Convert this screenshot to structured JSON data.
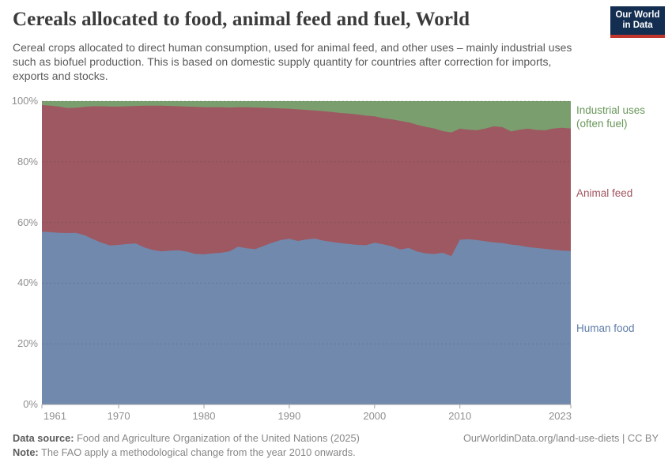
{
  "header": {
    "title": "Cereals allocated to food, animal feed and fuel, World",
    "subtitle": "Cereal crops allocated to direct human consumption, used for animal feed, and other uses – mainly industrial uses such as biofuel production. This is based on domestic supply quantity for countries after correction for imports, exports and stocks.",
    "logo": {
      "line1": "Our World",
      "line2": "in Data",
      "bg_color": "#142e52",
      "accent_color": "#c0362c"
    }
  },
  "chart_data": {
    "type": "area",
    "stacked_percent": true,
    "title": "Cereals allocated to food, animal feed and fuel, World",
    "xlabel": "",
    "ylabel": "",
    "ylim": [
      0,
      100
    ],
    "grid": "dashed-horizontal",
    "legend_position": "right",
    "x": [
      1961,
      1962,
      1963,
      1964,
      1965,
      1966,
      1967,
      1968,
      1969,
      1970,
      1971,
      1972,
      1973,
      1974,
      1975,
      1976,
      1977,
      1978,
      1979,
      1980,
      1981,
      1982,
      1983,
      1984,
      1985,
      1986,
      1987,
      1988,
      1989,
      1990,
      1991,
      1992,
      1993,
      1994,
      1995,
      1996,
      1997,
      1998,
      1999,
      2000,
      2001,
      2002,
      2003,
      2004,
      2005,
      2006,
      2007,
      2008,
      2009,
      2010,
      2011,
      2012,
      2013,
      2014,
      2015,
      2016,
      2017,
      2018,
      2019,
      2020,
      2021,
      2022,
      2023
    ],
    "series": [
      {
        "name": "Human food",
        "color": "#7189ad",
        "label_color": "#5e7ca9",
        "label_lines": [
          "Human food"
        ],
        "values": [
          57.0,
          56.8,
          56.6,
          56.5,
          56.6,
          55.8,
          54.5,
          53.3,
          52.4,
          52.6,
          52.9,
          53.1,
          51.8,
          50.9,
          50.5,
          50.7,
          50.8,
          50.4,
          49.6,
          49.5,
          49.8,
          50.0,
          50.5,
          52.0,
          51.5,
          51.2,
          52.3,
          53.3,
          54.2,
          54.6,
          53.9,
          54.4,
          54.7,
          54.0,
          53.6,
          53.2,
          52.9,
          52.6,
          52.5,
          53.3,
          52.8,
          52.2,
          51.1,
          51.6,
          50.4,
          49.8,
          49.6,
          50.0,
          48.9,
          54.3,
          54.5,
          54.2,
          53.8,
          53.4,
          53.2,
          52.7,
          52.4,
          51.9,
          51.6,
          51.3,
          51.0,
          50.7,
          50.6
        ]
      },
      {
        "name": "Animal feed",
        "color": "#9e5862",
        "label_color": "#a1545f",
        "label_lines": [
          "Animal feed"
        ],
        "values": [
          41.7,
          41.7,
          41.6,
          41.2,
          41.2,
          42.3,
          43.8,
          45.0,
          45.8,
          45.6,
          45.4,
          45.3,
          46.7,
          47.6,
          48.0,
          47.7,
          47.5,
          47.8,
          48.5,
          48.5,
          48.2,
          48.0,
          47.4,
          46.0,
          46.5,
          46.7,
          45.5,
          44.4,
          43.4,
          42.9,
          43.4,
          42.7,
          42.2,
          42.7,
          42.8,
          42.9,
          43.0,
          43.0,
          42.7,
          41.7,
          41.6,
          41.8,
          42.4,
          41.4,
          41.8,
          41.7,
          41.4,
          40.1,
          40.8,
          36.6,
          36.1,
          36.2,
          37.2,
          38.3,
          38.2,
          37.3,
          38.2,
          39.0,
          38.9,
          39.1,
          40.0,
          40.5,
          40.4
        ]
      },
      {
        "name": "Industrial uses (often fuel)",
        "color": "#7a9e6e",
        "label_color": "#69975a",
        "label_lines": [
          "Industrial uses",
          "(often fuel)"
        ],
        "values": [
          1.3,
          1.5,
          1.8,
          2.3,
          2.2,
          1.9,
          1.7,
          1.7,
          1.8,
          1.8,
          1.7,
          1.6,
          1.5,
          1.5,
          1.5,
          1.6,
          1.7,
          1.8,
          1.9,
          2.0,
          2.0,
          2.0,
          2.1,
          2.0,
          2.0,
          2.1,
          2.2,
          2.3,
          2.4,
          2.5,
          2.7,
          2.9,
          3.1,
          3.3,
          3.6,
          3.9,
          4.1,
          4.4,
          4.8,
          5.0,
          5.6,
          6.0,
          6.5,
          7.0,
          7.8,
          8.5,
          9.0,
          9.9,
          10.3,
          9.1,
          9.4,
          9.6,
          9.0,
          8.3,
          8.6,
          10.0,
          9.4,
          9.1,
          9.5,
          9.6,
          9.0,
          8.8,
          9.0
        ]
      }
    ],
    "yticks": [
      "0%",
      "20%",
      "40%",
      "60%",
      "80%",
      "100%"
    ],
    "ytick_values": [
      0,
      20,
      40,
      60,
      80,
      100
    ],
    "xticks": [
      1961,
      1970,
      1980,
      1990,
      2000,
      2010,
      2023
    ]
  },
  "footer": {
    "source_label": "Data source:",
    "source_text": "Food and Agriculture Organization of the United Nations (2025)",
    "note_label": "Note:",
    "note_text": "The FAO apply a methodological change from the year 2010 onwards.",
    "url_text": "OurWorldinData.org/land-use-diets | CC BY"
  }
}
